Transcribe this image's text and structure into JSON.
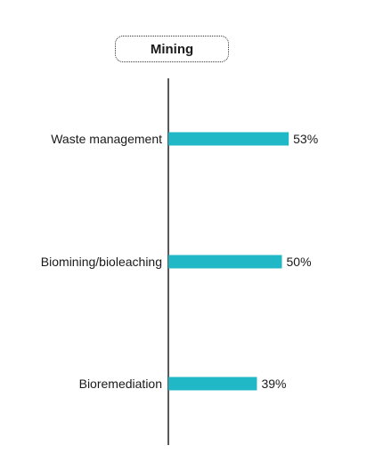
{
  "chart_data": {
    "type": "bar",
    "orientation": "horizontal",
    "title": "Mining",
    "categories": [
      "Waste management",
      "Biomining/bioleaching",
      "Bioremediation"
    ],
    "values": [
      53,
      50,
      39
    ],
    "value_labels": [
      "53%",
      "50%",
      "39%"
    ],
    "unit": "%",
    "xlim": [
      0,
      100
    ],
    "grid": false,
    "legend": "none",
    "bar_color": "#20B7C6",
    "axis_color": "#222222"
  }
}
